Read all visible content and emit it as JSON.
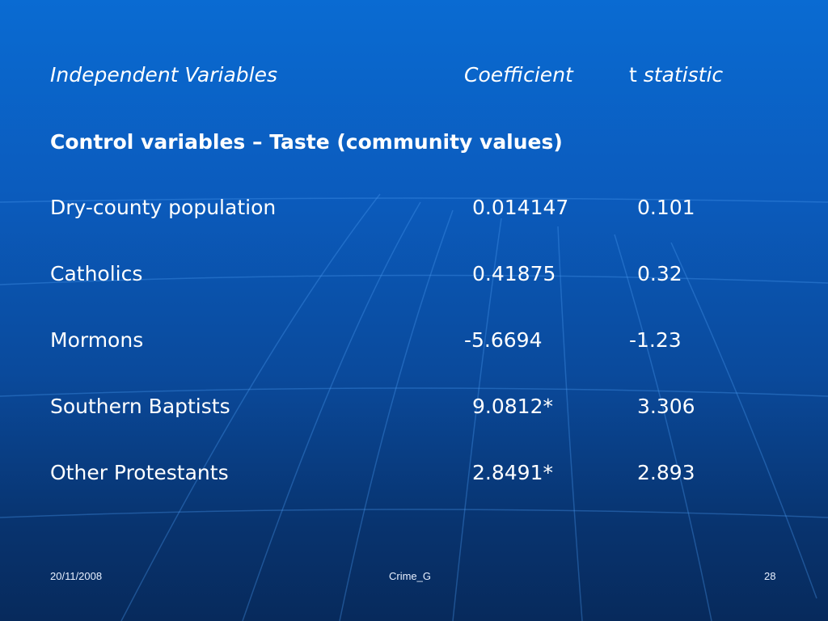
{
  "header": {
    "col_label": "Independent Variables",
    "col_coef": "Coefficient",
    "col_t_letter": "t",
    "col_t_stat": "statistic"
  },
  "section_title": "Control variables – Taste (community values)",
  "rows": [
    {
      "label": "Dry-county population",
      "coef": "0.014147",
      "t": "0.101"
    },
    {
      "label": "Catholics",
      "coef": "0.41875",
      "t": "0.32"
    },
    {
      "label": "Mormons",
      "coef": "-5.6694",
      "t": "-1.23"
    },
    {
      "label": "Southern Baptists",
      "coef": "9.0812*",
      "t": "3.306"
    },
    {
      "label": "Other Protestants",
      "coef": "2.8491*",
      "t": "2.893"
    }
  ],
  "footer": {
    "date": "20/11/2008",
    "title": "Crime_G",
    "page": "28"
  },
  "colors": {
    "background_top": "#0a6bd2",
    "background_bottom": "#072a5c",
    "text": "#ffffff"
  }
}
